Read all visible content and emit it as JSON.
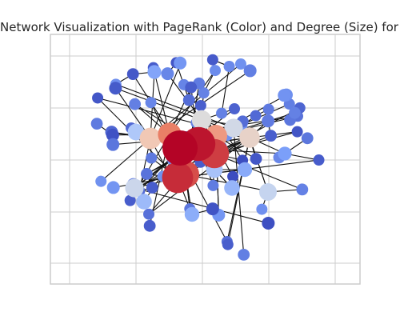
{
  "chart_data": {
    "type": "network",
    "title": "Network Visualization with PageRank (Color) and Degree (Size) for barabasi_a",
    "xlabel": "",
    "ylabel": "",
    "grid": true,
    "color_encoding": "PageRank",
    "size_encoding": "Degree",
    "colormap": "coolwarm",
    "node_count": 105,
    "nodes": [
      {
        "id": 0,
        "degree": 30,
        "pagerank": 1.0
      },
      {
        "id": 1,
        "degree": 27,
        "pagerank": 0.97
      },
      {
        "id": 2,
        "degree": 24,
        "pagerank": 0.93
      },
      {
        "id": 3,
        "degree": 22,
        "pagerank": 0.9
      },
      {
        "id": 4,
        "degree": 20,
        "pagerank": 0.87
      },
      {
        "id": 5,
        "degree": 16,
        "pagerank": 0.78
      },
      {
        "id": 6,
        "degree": 15,
        "pagerank": 0.72
      },
      {
        "id": 7,
        "degree": 14,
        "pagerank": 0.6
      },
      {
        "id": 8,
        "degree": 13,
        "pagerank": 0.55
      },
      {
        "id": 9,
        "degree": 12,
        "pagerank": 0.5
      },
      {
        "id": 10,
        "degree": 11,
        "pagerank": 0.46
      },
      {
        "id": 11,
        "degree": 11,
        "pagerank": 0.44
      },
      {
        "id": 12,
        "degree": 10,
        "pagerank": 0.42
      },
      {
        "id": 13,
        "degree": 9,
        "pagerank": 0.35
      },
      {
        "id": 14,
        "degree": 9,
        "pagerank": 0.33
      },
      {
        "id": 15,
        "degree": 8,
        "pagerank": 0.3
      },
      {
        "id": 16,
        "degree": 8,
        "pagerank": 0.28
      },
      {
        "id": 17,
        "degree": 7,
        "pagerank": 0.25
      },
      {
        "id": 18,
        "degree": 7,
        "pagerank": 0.24
      },
      {
        "id": 19,
        "degree": 6,
        "pagerank": 0.22
      },
      {
        "id": 20,
        "degree": 6,
        "pagerank": 0.2
      }
    ],
    "colors": {
      "highest": "#b40426",
      "high": "#e8765d",
      "mid_high": "#f5c4ad",
      "mid": "#dddcdc",
      "mid_low": "#b9d0f9",
      "low": "#7b9ff9",
      "lowest": "#3b4cc0",
      "edge": "#111111",
      "grid": "#cccccc",
      "frame": "#cccccc"
    }
  }
}
